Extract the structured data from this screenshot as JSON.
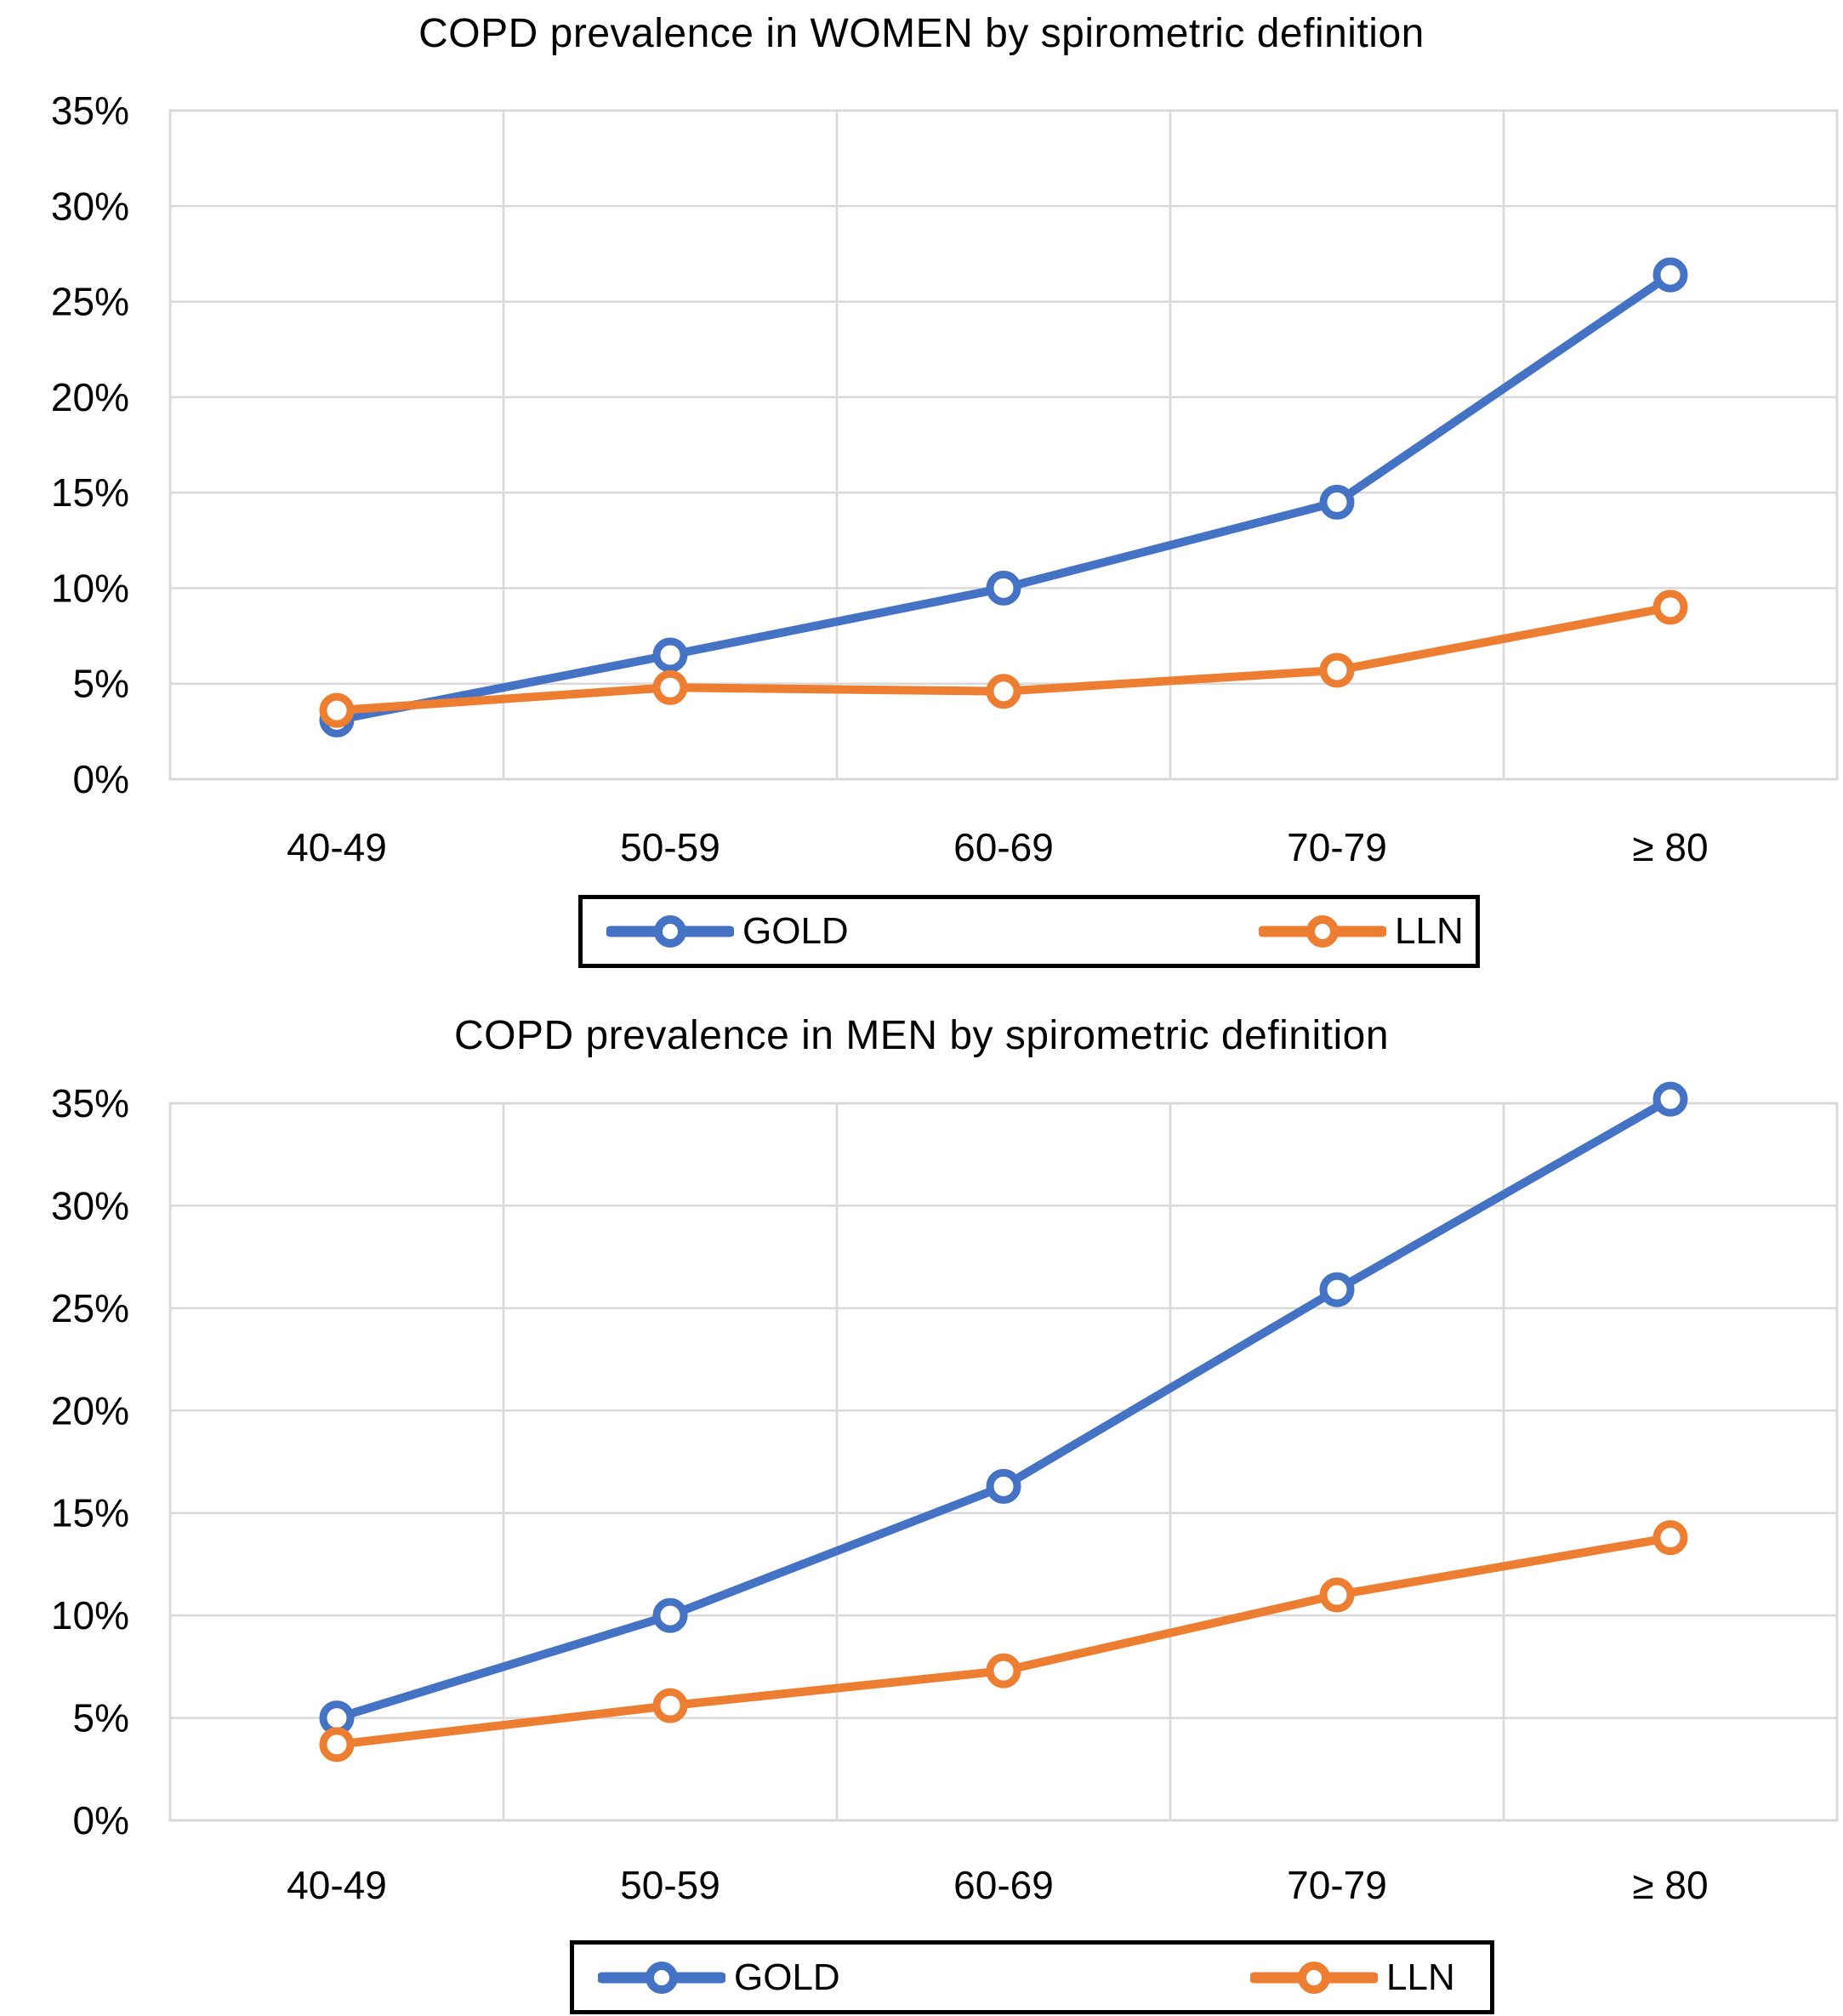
{
  "palette": {
    "gold_blue": "#4472C4",
    "lln_orange": "#ED7D31",
    "gridline": "#D9D9D9",
    "text": "#000000",
    "legend_border": "#000000",
    "background": "#FFFFFF"
  },
  "chart_data": [
    {
      "type": "line",
      "title": "COPD prevalence in WOMEN by spirometric definition",
      "xlabel": "",
      "ylabel": "",
      "categories": [
        "40-49",
        "50-59",
        "60-69",
        "70-79",
        "≥ 80"
      ],
      "series": [
        {
          "name": "GOLD",
          "color": "#4472C4",
          "marker": "open-circle",
          "values": [
            3.1,
            6.5,
            10.0,
            14.5,
            26.4
          ]
        },
        {
          "name": "LLN",
          "color": "#ED7D31",
          "marker": "open-circle",
          "values": [
            3.6,
            4.8,
            4.6,
            5.7,
            9.0
          ]
        }
      ],
      "ylim": [
        0,
        35
      ],
      "ytick_step": 5,
      "ytick_labels": [
        "0%",
        "5%",
        "10%",
        "15%",
        "20%",
        "25%",
        "30%",
        "35%"
      ],
      "grid": true,
      "legend_position": "bottom",
      "legend_entries": [
        "GOLD",
        "LLN"
      ]
    },
    {
      "type": "line",
      "title": "COPD prevalence in MEN by spirometric definition",
      "xlabel": "",
      "ylabel": "",
      "categories": [
        "40-49",
        "50-59",
        "60-69",
        "70-79",
        "≥ 80"
      ],
      "series": [
        {
          "name": "GOLD",
          "color": "#4472C4",
          "marker": "open-circle",
          "values": [
            5.0,
            10.0,
            16.3,
            25.9,
            35.2
          ]
        },
        {
          "name": "LLN",
          "color": "#ED7D31",
          "marker": "open-circle",
          "values": [
            3.7,
            5.6,
            7.3,
            11.0,
            13.8
          ]
        }
      ],
      "ylim": [
        0,
        35
      ],
      "ytick_step": 5,
      "ytick_labels": [
        "0%",
        "5%",
        "10%",
        "15%",
        "20%",
        "25%",
        "30%",
        "35%"
      ],
      "grid": true,
      "legend_position": "bottom",
      "legend_entries": [
        "GOLD",
        "LLN"
      ]
    }
  ]
}
